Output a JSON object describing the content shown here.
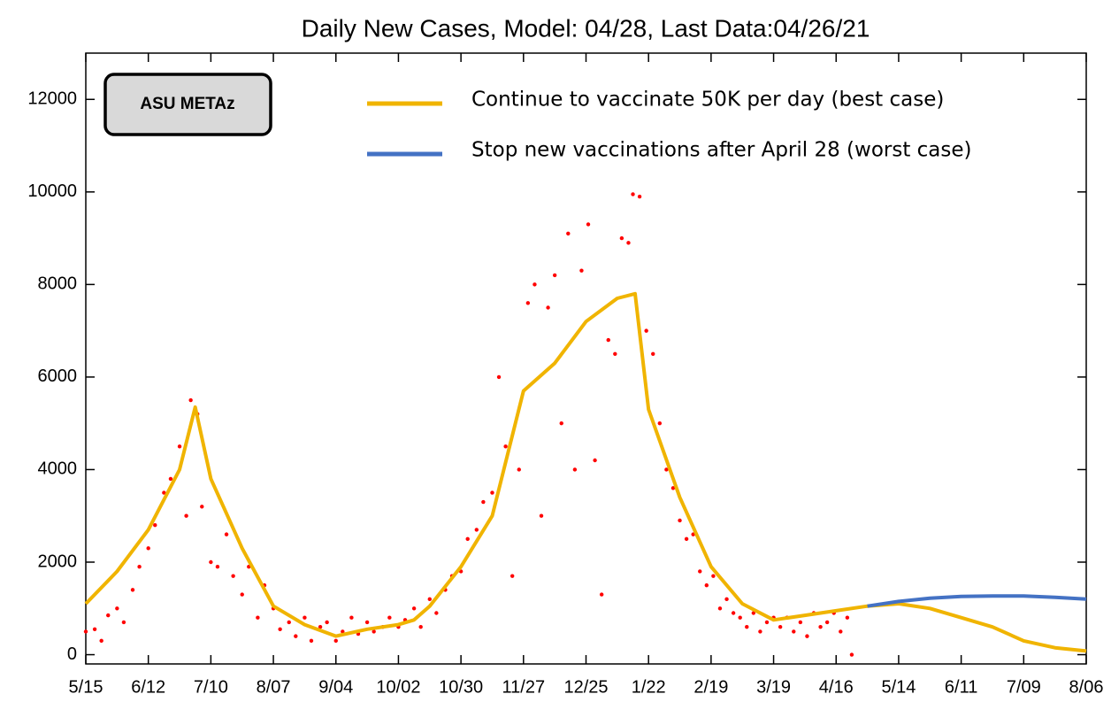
{
  "chart_data": {
    "type": "line",
    "title": "Daily New Cases, Model: 04/28, Last Data:04/26/21",
    "annotation": "ASU METAz",
    "xlim": [
      0,
      448
    ],
    "xticks": [
      {
        "value": 0,
        "label": "5/15"
      },
      {
        "value": 28,
        "label": "6/12"
      },
      {
        "value": 56,
        "label": "7/10"
      },
      {
        "value": 84,
        "label": "8/07"
      },
      {
        "value": 112,
        "label": "9/04"
      },
      {
        "value": 140,
        "label": "10/02"
      },
      {
        "value": 168,
        "label": "10/30"
      },
      {
        "value": 196,
        "label": "11/27"
      },
      {
        "value": 224,
        "label": "12/25"
      },
      {
        "value": 252,
        "label": "1/22"
      },
      {
        "value": 280,
        "label": "2/19"
      },
      {
        "value": 308,
        "label": "3/19"
      },
      {
        "value": 336,
        "label": "4/16"
      },
      {
        "value": 364,
        "label": "5/14"
      },
      {
        "value": 392,
        "label": "6/11"
      },
      {
        "value": 420,
        "label": "7/09"
      },
      {
        "value": 448,
        "label": "8/06"
      }
    ],
    "ylim": [
      -200,
      13000
    ],
    "yticks": [
      0,
      2000,
      4000,
      6000,
      8000,
      10000,
      12000
    ],
    "grid": false,
    "x": [
      0,
      14,
      28,
      42,
      49,
      56,
      70,
      84,
      98,
      112,
      126,
      140,
      147,
      154,
      168,
      182,
      196,
      210,
      224,
      238,
      246,
      252,
      266,
      280,
      294,
      308,
      322,
      336,
      350,
      364,
      378,
      392,
      406,
      420,
      434,
      448
    ],
    "series": [
      {
        "name": "Continue to vaccinate 50K per day (best case)",
        "color": "#f0b400",
        "values": [
          1100,
          1800,
          2700,
          4000,
          5350,
          3800,
          2300,
          1050,
          650,
          400,
          550,
          650,
          750,
          1050,
          1900,
          3000,
          5700,
          6300,
          7200,
          7700,
          7800,
          5300,
          3400,
          1900,
          1100,
          750,
          850,
          950,
          1050,
          1100,
          1000,
          800,
          600,
          300,
          150,
          80
        ]
      },
      {
        "name": "Stop new vaccinations after April 28 (worst case)",
        "color": "#4472c4",
        "values": [
          null,
          null,
          null,
          null,
          null,
          null,
          null,
          null,
          null,
          null,
          null,
          null,
          null,
          null,
          null,
          null,
          null,
          null,
          null,
          null,
          null,
          null,
          null,
          null,
          null,
          null,
          null,
          null,
          1050,
          1150,
          1220,
          1260,
          1270,
          1270,
          1240,
          1200
        ]
      }
    ],
    "observed": {
      "color": "#ff0000",
      "x": [
        0,
        4,
        7,
        10,
        14,
        17,
        21,
        24,
        28,
        31,
        35,
        38,
        42,
        45,
        47,
        50,
        52,
        56,
        59,
        63,
        66,
        70,
        73,
        77,
        80,
        84,
        87,
        91,
        94,
        98,
        101,
        105,
        108,
        112,
        115,
        119,
        122,
        126,
        129,
        133,
        136,
        140,
        143,
        147,
        150,
        154,
        157,
        161,
        164,
        168,
        171,
        175,
        178,
        182,
        185,
        188,
        191,
        194,
        198,
        201,
        204,
        207,
        210,
        213,
        216,
        219,
        222,
        225,
        228,
        231,
        234,
        237,
        240,
        243,
        245,
        248,
        251,
        254,
        257,
        260,
        263,
        266,
        269,
        272,
        275,
        278,
        281,
        284,
        287,
        290,
        293,
        296,
        299,
        302,
        305,
        308,
        311,
        314,
        317,
        320,
        323,
        326,
        329,
        332,
        335,
        338,
        341,
        343
      ],
      "values": [
        500,
        550,
        300,
        850,
        1000,
        700,
        1400,
        1900,
        2300,
        2800,
        3500,
        3800,
        4500,
        3000,
        5500,
        5200,
        3200,
        2000,
        1900,
        2600,
        1700,
        1300,
        1900,
        800,
        1500,
        1000,
        550,
        700,
        400,
        800,
        300,
        600,
        700,
        300,
        500,
        800,
        450,
        700,
        500,
        600,
        800,
        600,
        750,
        1000,
        600,
        1200,
        900,
        1400,
        1700,
        1800,
        2500,
        2700,
        3300,
        3500,
        6000,
        4500,
        1700,
        4000,
        7600,
        8000,
        3000,
        7500,
        8200,
        5000,
        9100,
        4000,
        8300,
        9300,
        4200,
        1300,
        6800,
        6500,
        9000,
        8900,
        9950,
        9900,
        7000,
        6500,
        5000,
        4000,
        3600,
        2900,
        2500,
        2600,
        1800,
        1500,
        1700,
        1000,
        1200,
        900,
        800,
        600,
        900,
        500,
        700,
        800,
        600,
        800,
        500,
        700,
        400,
        900,
        600,
        700,
        900,
        500,
        800,
        0
      ]
    }
  }
}
